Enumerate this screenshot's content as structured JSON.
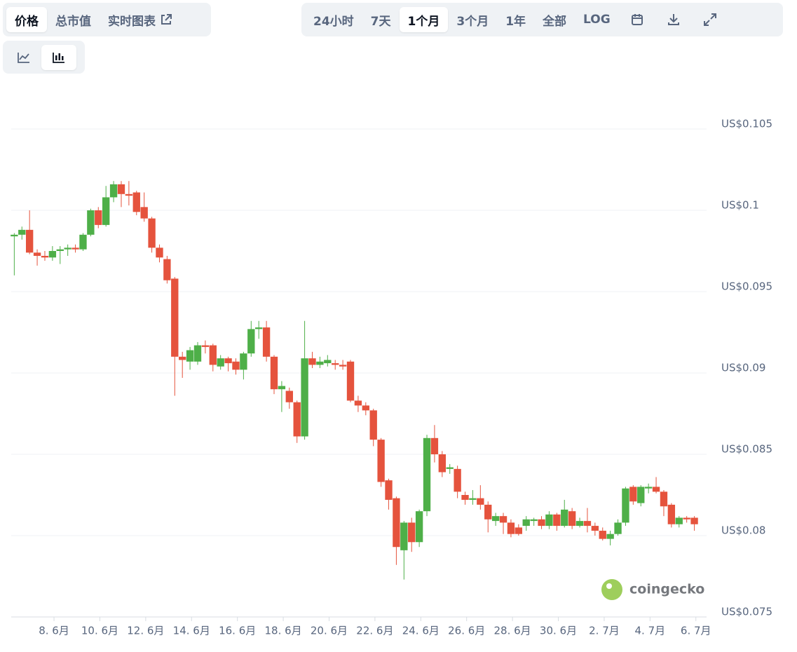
{
  "tabs": [
    "价格",
    "总市值",
    "实时图表"
  ],
  "ranges": [
    "24小时",
    "7天",
    "1个月",
    "3个月",
    "1年",
    "全部",
    "LOG"
  ],
  "watermark": "coingecko",
  "chart_data": {
    "type": "candlestick",
    "up_color": "#4eaf48",
    "down_color": "#e5533d",
    "grid": true,
    "open": [
      0.0984,
      0.0985,
      0.0988,
      0.0974,
      0.0972,
      0.0971,
      0.0975,
      0.0976,
      0.0977,
      0.0976,
      0.0985,
      0.1,
      0.0991,
      0.1008,
      0.1016,
      0.101,
      0.1011,
      0.1002,
      0.0995,
      0.0977,
      0.097,
      0.0958,
      0.091,
      0.0907,
      0.0907,
      0.0917,
      0.0917,
      0.0904,
      0.0909,
      0.0907,
      0.0902,
      0.0912,
      0.0927,
      0.0928,
      0.091,
      0.089,
      0.0889,
      0.0882,
      0.0861,
      0.0909,
      0.0905,
      0.0906,
      0.0906,
      0.0905,
      0.0907,
      0.0883,
      0.088,
      0.0877,
      0.0859,
      0.0834,
      0.0823,
      0.0791,
      0.0808,
      0.0796,
      0.0815,
      0.086,
      0.085,
      0.0841,
      0.0841,
      0.0825,
      0.0822,
      0.0823,
      0.0819,
      0.0809,
      0.0812,
      0.0808,
      0.0805,
      0.0806,
      0.0809,
      0.081,
      0.0806,
      0.0813,
      0.0806,
      0.0815,
      0.0806,
      0.0809,
      0.0806,
      0.0803,
      0.0798,
      0.0801,
      0.0808,
      0.083,
      0.082,
      0.0829,
      0.083,
      0.0827,
      0.0819,
      0.0807,
      0.0811,
      0.0811
    ],
    "high": [
      0.0986,
      0.099,
      0.1,
      0.0976,
      0.0975,
      0.0978,
      0.0978,
      0.0979,
      0.0979,
      0.0986,
      0.1001,
      0.1002,
      0.1015,
      0.1018,
      0.1018,
      0.1018,
      0.1012,
      0.1011,
      0.0996,
      0.0979,
      0.0972,
      0.0959,
      0.0913,
      0.0916,
      0.0919,
      0.092,
      0.0918,
      0.0911,
      0.091,
      0.0909,
      0.0913,
      0.0932,
      0.0932,
      0.0932,
      0.0911,
      0.0895,
      0.0891,
      0.0883,
      0.0932,
      0.0913,
      0.091,
      0.0911,
      0.0908,
      0.0908,
      0.0908,
      0.0886,
      0.0882,
      0.0878,
      0.086,
      0.0835,
      0.0824,
      0.0809,
      0.0811,
      0.0816,
      0.0862,
      0.0868,
      0.0852,
      0.0844,
      0.0843,
      0.0827,
      0.0828,
      0.0831,
      0.0821,
      0.0814,
      0.0814,
      0.081,
      0.0807,
      0.0812,
      0.0811,
      0.0812,
      0.0815,
      0.0814,
      0.0822,
      0.0817,
      0.0811,
      0.0817,
      0.0808,
      0.0805,
      0.0803,
      0.081,
      0.083,
      0.0831,
      0.0831,
      0.0832,
      0.0836,
      0.0828,
      0.082,
      0.0812,
      0.0812,
      0.0812
    ],
    "low": [
      0.096,
      0.0982,
      0.0973,
      0.0966,
      0.0969,
      0.0969,
      0.0967,
      0.0972,
      0.0974,
      0.0975,
      0.0984,
      0.0989,
      0.099,
      0.1005,
      0.1002,
      0.1003,
      0.0997,
      0.0993,
      0.0974,
      0.0968,
      0.0955,
      0.0886,
      0.0897,
      0.0902,
      0.0905,
      0.0912,
      0.0901,
      0.0902,
      0.0901,
      0.0899,
      0.0896,
      0.091,
      0.0921,
      0.0907,
      0.0887,
      0.0876,
      0.0878,
      0.0857,
      0.0859,
      0.0903,
      0.0903,
      0.0904,
      0.0902,
      0.0902,
      0.0882,
      0.0876,
      0.0874,
      0.0855,
      0.083,
      0.0816,
      0.0782,
      0.0773,
      0.079,
      0.0793,
      0.0812,
      0.0845,
      0.0836,
      0.0838,
      0.0823,
      0.0819,
      0.0819,
      0.0816,
      0.0802,
      0.0806,
      0.0801,
      0.0799,
      0.08,
      0.0803,
      0.0806,
      0.0804,
      0.0804,
      0.0803,
      0.0805,
      0.0804,
      0.0805,
      0.0802,
      0.08,
      0.0797,
      0.0794,
      0.08,
      0.0806,
      0.0819,
      0.0818,
      0.0826,
      0.0826,
      0.0812,
      0.0805,
      0.0805,
      0.0808,
      0.0803
    ],
    "close": [
      0.0985,
      0.0988,
      0.0974,
      0.0972,
      0.0971,
      0.0975,
      0.0976,
      0.0977,
      0.0976,
      0.0985,
      0.1,
      0.0991,
      0.1008,
      0.1016,
      0.101,
      0.1009,
      0.0999,
      0.0995,
      0.0977,
      0.0971,
      0.0957,
      0.091,
      0.0908,
      0.0914,
      0.0917,
      0.0916,
      0.0905,
      0.0909,
      0.0906,
      0.0902,
      0.0912,
      0.0927,
      0.0928,
      0.091,
      0.089,
      0.0892,
      0.0882,
      0.0861,
      0.0909,
      0.0905,
      0.0907,
      0.0908,
      0.0905,
      0.0904,
      0.0883,
      0.088,
      0.0877,
      0.0859,
      0.0833,
      0.0822,
      0.0793,
      0.0808,
      0.0796,
      0.0815,
      0.086,
      0.085,
      0.0839,
      0.0842,
      0.0827,
      0.0822,
      0.0823,
      0.0819,
      0.081,
      0.0812,
      0.0808,
      0.0801,
      0.0801,
      0.081,
      0.081,
      0.0806,
      0.0813,
      0.0806,
      0.0816,
      0.0806,
      0.0809,
      0.0806,
      0.0803,
      0.0798,
      0.0801,
      0.0808,
      0.0829,
      0.0821,
      0.083,
      0.083,
      0.0827,
      0.0818,
      0.0807,
      0.0811,
      0.081,
      0.0807
    ],
    "ylim": [
      0.075,
      0.107
    ],
    "yticks": [
      {
        "value": 0.075,
        "label": "US$0.075"
      },
      {
        "value": 0.08,
        "label": "US$0.08"
      },
      {
        "value": 0.085,
        "label": "US$0.085"
      },
      {
        "value": 0.09,
        "label": "US$0.09"
      },
      {
        "value": 0.095,
        "label": "US$0.095"
      },
      {
        "value": 0.1,
        "label": "US$0.1"
      },
      {
        "value": 0.105,
        "label": "US$0.105"
      }
    ],
    "xlim": [
      -0.4,
      90.6
    ],
    "xticks": [
      {
        "value": 5.2,
        "label": "8. 6月"
      },
      {
        "value": 11.2,
        "label": "10. 6月"
      },
      {
        "value": 17.2,
        "label": "12. 6月"
      },
      {
        "value": 23.2,
        "label": "14. 6月"
      },
      {
        "value": 29.2,
        "label": "16. 6月"
      },
      {
        "value": 35.2,
        "label": "18. 6月"
      },
      {
        "value": 41.2,
        "label": "20. 6月"
      },
      {
        "value": 47.2,
        "label": "22. 6月"
      },
      {
        "value": 53.2,
        "label": "24. 6月"
      },
      {
        "value": 59.2,
        "label": "26. 6月"
      },
      {
        "value": 65.2,
        "label": "28. 6月"
      },
      {
        "value": 71.2,
        "label": "30. 6月"
      },
      {
        "value": 77.2,
        "label": "2. 7月"
      },
      {
        "value": 83.2,
        "label": "4. 7月"
      },
      {
        "value": 89.2,
        "label": "6. 7月"
      }
    ]
  }
}
